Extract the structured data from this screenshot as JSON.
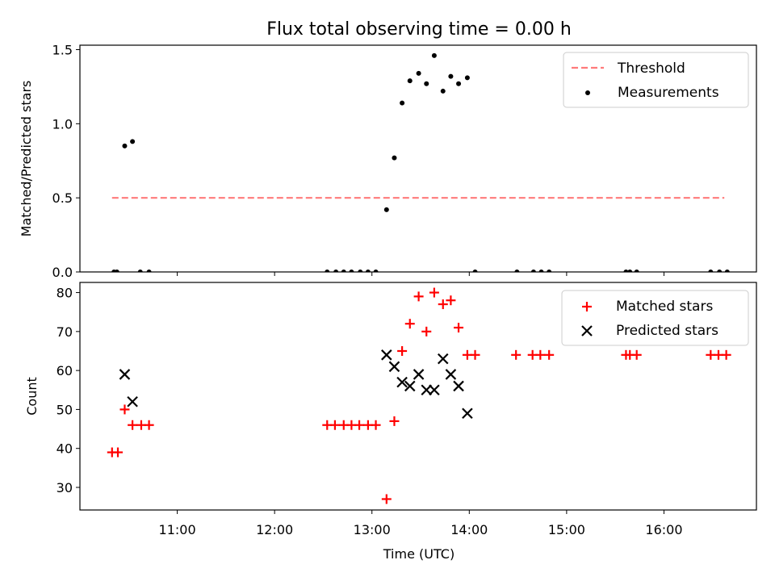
{
  "chart_data": {
    "title": "Flux total observing time = 0.00 h",
    "xlabel": "Time (UTC)",
    "x_ticks": [
      "11:00",
      "12:00",
      "13:00",
      "14:00",
      "15:00",
      "16:00"
    ],
    "x_tick_values": [
      11.0,
      12.0,
      13.0,
      14.0,
      15.0,
      16.0
    ],
    "xlim": [
      10.0,
      16.95
    ],
    "panels": [
      {
        "type": "scatter",
        "ylabel": "Matched/Predicted stars",
        "ylim": [
          0.0,
          1.53
        ],
        "y_ticks": [
          "0.0",
          "0.5",
          "1.0",
          "1.5"
        ],
        "y_tick_values": [
          0.0,
          0.5,
          1.0,
          1.5
        ],
        "legend": {
          "placement": "upper right",
          "entries": [
            "Threshold",
            "Measurements"
          ]
        },
        "threshold": {
          "name": "Threshold",
          "y": 0.5,
          "x_range": [
            10.33,
            16.62
          ],
          "color": "#ff7a7a",
          "style": "dashed"
        },
        "measurements": {
          "name": "Measurements",
          "color": "#000000",
          "points": [
            {
              "x": 10.35,
              "y": 0.0
            },
            {
              "x": 10.38,
              "y": 0.0
            },
            {
              "x": 10.46,
              "y": 0.85
            },
            {
              "x": 10.54,
              "y": 0.88
            },
            {
              "x": 10.62,
              "y": 0.0
            },
            {
              "x": 10.71,
              "y": 0.0
            },
            {
              "x": 12.54,
              "y": 0.0
            },
            {
              "x": 12.63,
              "y": 0.0
            },
            {
              "x": 12.71,
              "y": 0.0
            },
            {
              "x": 12.79,
              "y": 0.0
            },
            {
              "x": 12.88,
              "y": 0.0
            },
            {
              "x": 12.96,
              "y": 0.0
            },
            {
              "x": 13.04,
              "y": 0.0
            },
            {
              "x": 13.15,
              "y": 0.42
            },
            {
              "x": 13.23,
              "y": 0.77
            },
            {
              "x": 13.31,
              "y": 1.14
            },
            {
              "x": 13.39,
              "y": 1.29
            },
            {
              "x": 13.48,
              "y": 1.34
            },
            {
              "x": 13.56,
              "y": 1.27
            },
            {
              "x": 13.64,
              "y": 1.46
            },
            {
              "x": 13.73,
              "y": 1.22
            },
            {
              "x": 13.81,
              "y": 1.32
            },
            {
              "x": 13.89,
              "y": 1.27
            },
            {
              "x": 13.98,
              "y": 1.31
            },
            {
              "x": 14.06,
              "y": 0.0
            },
            {
              "x": 14.49,
              "y": 0.0
            },
            {
              "x": 14.66,
              "y": 0.0
            },
            {
              "x": 14.74,
              "y": 0.0
            },
            {
              "x": 14.82,
              "y": 0.0
            },
            {
              "x": 15.61,
              "y": 0.0
            },
            {
              "x": 15.65,
              "y": 0.0
            },
            {
              "x": 15.72,
              "y": 0.0
            },
            {
              "x": 16.48,
              "y": 0.0
            },
            {
              "x": 16.57,
              "y": 0.0
            },
            {
              "x": 16.65,
              "y": 0.0
            }
          ]
        }
      },
      {
        "type": "scatter",
        "ylabel": "Count",
        "ylim": [
          24.2,
          82.6
        ],
        "y_ticks": [
          "30",
          "40",
          "50",
          "60",
          "70",
          "80"
        ],
        "y_tick_values": [
          30,
          40,
          50,
          60,
          70,
          80
        ],
        "legend": {
          "placement": "upper right",
          "entries": [
            "Matched stars",
            "Predicted stars"
          ]
        },
        "series": [
          {
            "name": "Matched stars",
            "marker": "plus",
            "color": "#ff0000",
            "points": [
              {
                "x": 10.33,
                "y": 39
              },
              {
                "x": 10.39,
                "y": 39
              },
              {
                "x": 10.46,
                "y": 50
              },
              {
                "x": 10.54,
                "y": 46
              },
              {
                "x": 10.63,
                "y": 46
              },
              {
                "x": 10.71,
                "y": 46
              },
              {
                "x": 12.54,
                "y": 46
              },
              {
                "x": 12.62,
                "y": 46
              },
              {
                "x": 12.71,
                "y": 46
              },
              {
                "x": 12.79,
                "y": 46
              },
              {
                "x": 12.87,
                "y": 46
              },
              {
                "x": 12.96,
                "y": 46
              },
              {
                "x": 13.04,
                "y": 46
              },
              {
                "x": 13.15,
                "y": 27
              },
              {
                "x": 13.23,
                "y": 47
              },
              {
                "x": 13.31,
                "y": 65
              },
              {
                "x": 13.39,
                "y": 72
              },
              {
                "x": 13.48,
                "y": 79
              },
              {
                "x": 13.56,
                "y": 70
              },
              {
                "x": 13.64,
                "y": 80
              },
              {
                "x": 13.73,
                "y": 77
              },
              {
                "x": 13.81,
                "y": 78
              },
              {
                "x": 13.89,
                "y": 71
              },
              {
                "x": 13.98,
                "y": 64
              },
              {
                "x": 14.06,
                "y": 64
              },
              {
                "x": 14.48,
                "y": 64
              },
              {
                "x": 14.65,
                "y": 64
              },
              {
                "x": 14.73,
                "y": 64
              },
              {
                "x": 14.82,
                "y": 64
              },
              {
                "x": 15.61,
                "y": 64
              },
              {
                "x": 15.65,
                "y": 64
              },
              {
                "x": 15.72,
                "y": 64
              },
              {
                "x": 16.48,
                "y": 64
              },
              {
                "x": 16.56,
                "y": 64
              },
              {
                "x": 16.64,
                "y": 64
              }
            ]
          },
          {
            "name": "Predicted stars",
            "marker": "x",
            "color": "#000000",
            "points": [
              {
                "x": 10.46,
                "y": 59
              },
              {
                "x": 10.54,
                "y": 52
              },
              {
                "x": 13.15,
                "y": 64
              },
              {
                "x": 13.23,
                "y": 61
              },
              {
                "x": 13.31,
                "y": 57
              },
              {
                "x": 13.39,
                "y": 56
              },
              {
                "x": 13.48,
                "y": 59
              },
              {
                "x": 13.56,
                "y": 55
              },
              {
                "x": 13.64,
                "y": 55
              },
              {
                "x": 13.73,
                "y": 63
              },
              {
                "x": 13.81,
                "y": 59
              },
              {
                "x": 13.89,
                "y": 56
              },
              {
                "x": 13.98,
                "y": 49
              }
            ]
          }
        ]
      }
    ]
  }
}
